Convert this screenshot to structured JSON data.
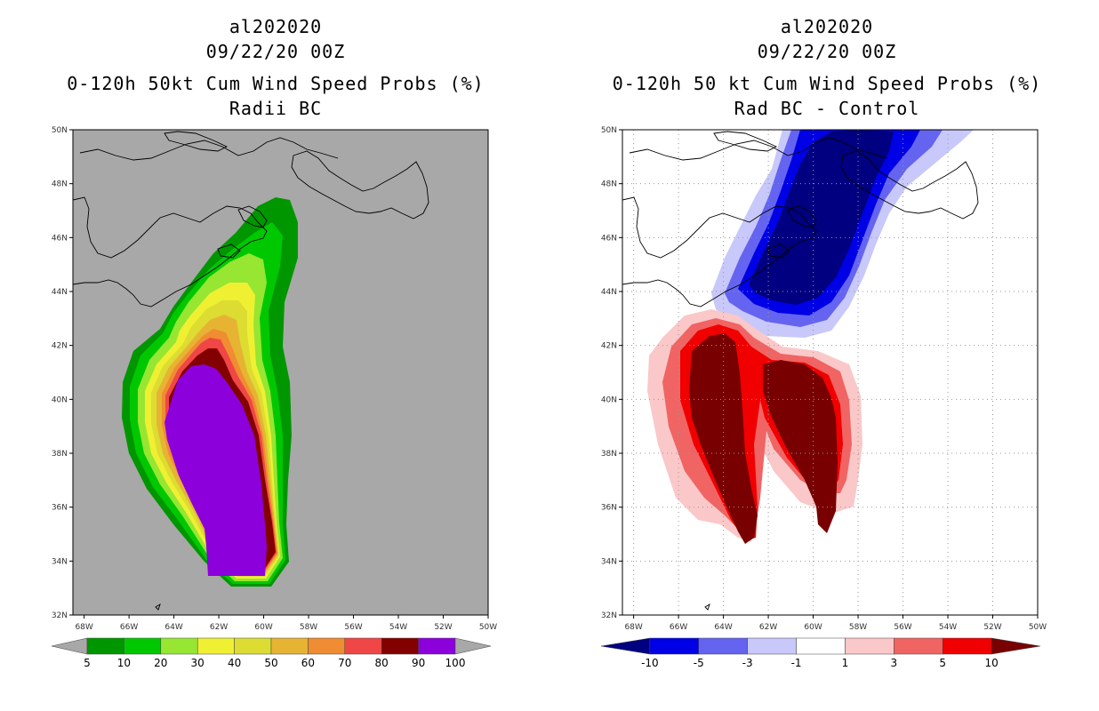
{
  "chart_data": [
    {
      "type": "heatmap",
      "panel": "left",
      "title_lines": [
        "al202020",
        "09/22/20 00Z"
      ],
      "subtitle_lines": [
        "0-120h 50kt Cum Wind Speed Probs (%)",
        "Radii BC"
      ],
      "background": "#a8a8a8",
      "x_ticks": [
        "68W",
        "66W",
        "64W",
        "62W",
        "60W",
        "58W",
        "56W",
        "54W",
        "52W",
        "50W"
      ],
      "y_ticks": [
        "50N",
        "48N",
        "46N",
        "44N",
        "42N",
        "40N",
        "38N",
        "36N",
        "34N",
        "32N"
      ],
      "xlim_lon": [
        -68.5,
        -50.0
      ],
      "ylim_lat": [
        32,
        50
      ],
      "colorbar": {
        "labels": [
          "5",
          "10",
          "20",
          "30",
          "40",
          "50",
          "60",
          "70",
          "80",
          "90",
          "100"
        ],
        "colors": [
          "#009600",
          "#00c800",
          "#96e632",
          "#f0f032",
          "#dcdc32",
          "#e6b432",
          "#f08c32",
          "#f04646",
          "#820000",
          "#8c00dc"
        ]
      },
      "levels": [
        {
          "label": "5",
          "color": "#009600"
        },
        {
          "label": "10",
          "color": "#00c800"
        },
        {
          "label": "20",
          "color": "#96e632"
        },
        {
          "label": "30",
          "color": "#f0f032"
        },
        {
          "label": "40",
          "color": "#dcdc32"
        },
        {
          "label": "50",
          "color": "#e6b432"
        },
        {
          "label": "60",
          "color": "#f08c32"
        },
        {
          "label": "70",
          "color": "#f04646"
        },
        {
          "label": "80",
          "color": "#820000"
        },
        {
          "label": "90",
          "color": "#8c00dc"
        }
      ]
    },
    {
      "type": "heatmap",
      "panel": "right",
      "title_lines": [
        "al202020",
        "09/22/20 00Z"
      ],
      "subtitle_lines": [
        "0-120h 50 kt Cum Wind Speed Probs (%)",
        "Rad BC - Control"
      ],
      "background": "#ffffff",
      "grid": true,
      "x_ticks": [
        "68W",
        "66W",
        "64W",
        "62W",
        "60W",
        "58W",
        "56W",
        "54W",
        "52W",
        "50W"
      ],
      "y_ticks": [
        "50N",
        "48N",
        "46N",
        "44N",
        "42N",
        "40N",
        "38N",
        "36N",
        "34N",
        "32N"
      ],
      "xlim_lon": [
        -68.5,
        -50.0
      ],
      "ylim_lat": [
        32,
        50
      ],
      "colorbar": {
        "labels": [
          "-10",
          "-5",
          "-3",
          "-1",
          "1",
          "3",
          "5",
          "10"
        ],
        "colors": [
          "#000080",
          "#0000e6",
          "#6464f0",
          "#c8c8fa",
          "#ffffff",
          "#fac8c8",
          "#f06464",
          "#f00000",
          "#780000"
        ]
      }
    }
  ]
}
